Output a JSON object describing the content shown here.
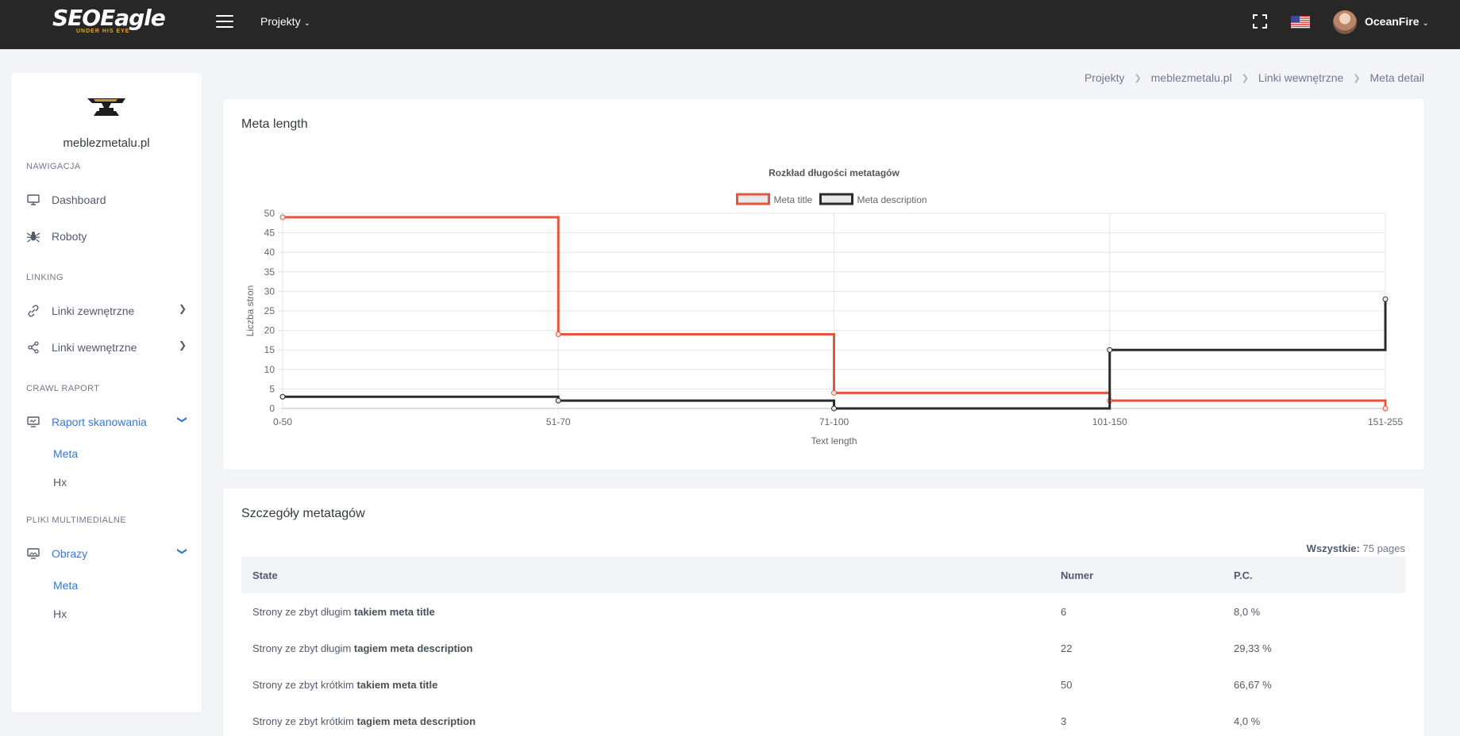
{
  "topbar": {
    "logo_text": "SEOEagle",
    "logo_sub": "UNDER HIS EYE",
    "projects_label": "Projekty",
    "username": "OceanFire"
  },
  "sidebar": {
    "site_name": "meblezmetalu.pl",
    "sections": {
      "nav": "NAWIGACJA",
      "linking": "LINKING",
      "crawl": "CRAWL RAPORT",
      "media": "PLIKI MULTIMEDIALNE"
    },
    "items": {
      "dashboard": "Dashboard",
      "roboty": "Roboty",
      "external": "Linki zewnętrzne",
      "internal": "Linki wewnętrzne",
      "scan_report": "Raport skanowania",
      "scan_meta": "Meta",
      "scan_hx": "Hx",
      "images": "Obrazy",
      "images_meta": "Meta",
      "images_hx": "Hx"
    }
  },
  "breadcrumb": [
    "Projekty",
    "meblezmetalu.pl",
    "Linki wewnętrzne",
    "Meta detail"
  ],
  "chart_card": {
    "title": "Meta length"
  },
  "chart_data": {
    "type": "line",
    "step": true,
    "title": "Rozkład długości metatagów",
    "xlabel": "Text length",
    "ylabel": "Liczba stron",
    "categories": [
      "0-50",
      "51-70",
      "71-100",
      "101-150",
      "151-255"
    ],
    "ylim": [
      0,
      50
    ],
    "yticks": [
      0,
      5,
      10,
      15,
      20,
      25,
      30,
      35,
      40,
      45,
      50
    ],
    "legend_position": "top",
    "grid": true,
    "series": [
      {
        "name": "Meta title",
        "color": "#e8533f",
        "values": [
          49,
          19,
          4,
          2,
          0
        ]
      },
      {
        "name": "Meta description",
        "color": "#2b2b2b",
        "values": [
          3,
          2,
          0,
          15,
          28
        ]
      }
    ]
  },
  "table_card": {
    "title": "Szczegóły metatagów",
    "total_label": "Wszystkie:",
    "total_value": "75 pages",
    "columns": [
      "State",
      "Numer",
      "P.C."
    ],
    "rows": [
      {
        "prefix": "Strony ze zbyt długim ",
        "bold": "takiem meta title",
        "num": "6",
        "pc": "8,0 %"
      },
      {
        "prefix": "Strony ze zbyt długim ",
        "bold": "tagiem meta description",
        "num": "22",
        "pc": "29,33 %"
      },
      {
        "prefix": "Strony ze zbyt krótkim ",
        "bold": "takiem meta title",
        "num": "50",
        "pc": "66,67 %"
      },
      {
        "prefix": "Strony ze zbyt krótkim ",
        "bold": "tagiem meta description",
        "num": "3",
        "pc": "4,0 %"
      }
    ]
  },
  "colors": {
    "topbar": "#272727",
    "accent": "#3b76d2",
    "background": "#f3f4f8"
  }
}
